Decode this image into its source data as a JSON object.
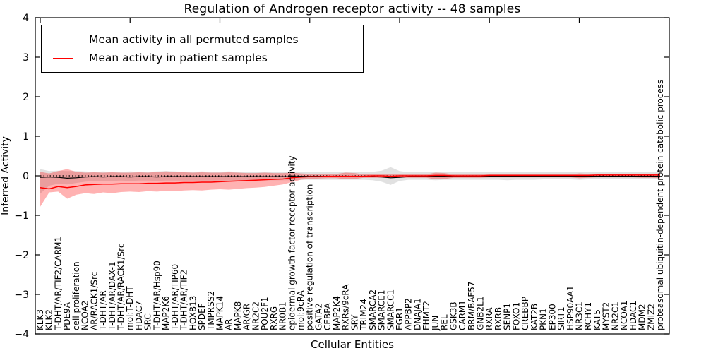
{
  "title": "Regulation of Androgen receptor activity -- 48 samples",
  "axes": {
    "ylabel": "Inferred Activity",
    "xlabel": "Cellular Entities"
  },
  "legend": [
    {
      "label": "Mean activity in all permuted samples",
      "color": "#000000"
    },
    {
      "label": "Mean activity in patient samples",
      "color": "#ff0000"
    }
  ],
  "chart_data": {
    "type": "line",
    "title": "Regulation of Androgen receptor activity -- 48 samples",
    "xlabel": "Cellular Entities",
    "ylabel": "Inferred Activity",
    "ylim": [
      -4,
      4
    ],
    "yticks": [
      4,
      3,
      2,
      1,
      0,
      -1,
      -2,
      -3,
      -4
    ],
    "ytick_labels": [
      "4",
      "3",
      "2",
      "1",
      "0",
      "−1",
      "−2",
      "−3",
      "−4"
    ],
    "grid": false,
    "legend_position": "upper left",
    "zero_line": {
      "y": 0,
      "style": "dotted",
      "color": "#000000"
    },
    "colors": {
      "permuted_line": "#000000",
      "patient_line": "#ff0000",
      "permuted_band": "rgba(90,90,90,0.18)",
      "patient_band": "rgba(255,0,0,0.30)"
    },
    "categories": [
      "KLK3",
      "KLK2",
      "T-DHT/AR/TIF2/CARM1",
      "PDE9A",
      "cell proliferation",
      "NCOA2",
      "AR/RACK1/Src",
      "T-DHT/AR",
      "T-DHT/AR/DAX-1",
      "T-DHT/AR/RACK1/Src",
      "mol:T-DHT",
      "HDAC7",
      "SRC",
      "T-DHT/AR/Hsp90",
      "MAP2K6",
      "T-DHT/AR/TIP60",
      "T-DHT/AR/TIF2",
      "HOXB13",
      "SPDEF",
      "TMPRSS2",
      "MAPK14",
      "AR",
      "MAPK8",
      "AR/GR",
      "NR2C2",
      "POU2F1",
      "RXRG",
      "NR0B1",
      "epidermal growth factor receptor activity",
      "mol:9cRA",
      "positive regulation of transcription",
      "GATA2",
      "CEBPA",
      "MAP2K4",
      "RXRs/9cRA",
      "SRY",
      "TRIM24",
      "SMARCA2",
      "SMARCE1",
      "SMARCC1",
      "EGR1",
      "APPBP2",
      "DNAJA1",
      "EHMT2",
      "JUN",
      "REL",
      "GSK3B",
      "CARM1",
      "BRM/BAF57",
      "GNB2L1",
      "RXRA",
      "RXRB",
      "SENP1",
      "FOXO1",
      "CREBBP",
      "KAT2B",
      "PKN1",
      "EP300",
      "SIRT1",
      "HSP90AA1",
      "NR3C1",
      "RCHY1",
      "KAT5",
      "MYST2",
      "NR2C1",
      "NCOA1",
      "HDAC1",
      "MDM2",
      "ZMIZ2",
      "proteasomal ubiquitin-dependent protein catabolic process"
    ],
    "series": [
      {
        "name": "Mean activity in all permuted samples",
        "values": [
          -0.04,
          -0.03,
          -0.04,
          -0.06,
          -0.05,
          -0.03,
          -0.02,
          -0.03,
          -0.02,
          -0.02,
          -0.03,
          -0.02,
          -0.02,
          -0.03,
          -0.02,
          -0.02,
          -0.02,
          -0.02,
          -0.02,
          -0.02,
          -0.02,
          -0.02,
          -0.02,
          -0.02,
          -0.02,
          -0.02,
          -0.02,
          -0.02,
          -0.02,
          -0.01,
          -0.01,
          -0.01,
          -0.01,
          -0.01,
          -0.01,
          -0.01,
          -0.01,
          -0.02,
          -0.03,
          -0.05,
          -0.04,
          -0.02,
          -0.01,
          -0.01,
          -0.01,
          -0.01,
          -0.01,
          -0.01,
          -0.01,
          -0.01,
          -0.01,
          -0.01,
          -0.01,
          -0.01,
          -0.01,
          -0.01,
          -0.01,
          -0.01,
          -0.01,
          -0.01,
          -0.01,
          -0.01,
          -0.01,
          -0.01,
          -0.01,
          -0.01,
          -0.01,
          -0.01,
          -0.01,
          -0.01
        ],
        "band_high": [
          0.17,
          0.12,
          0.13,
          0.12,
          0.12,
          0.11,
          0.1,
          0.11,
          0.1,
          0.1,
          0.11,
          0.1,
          0.1,
          0.11,
          0.12,
          0.11,
          0.1,
          0.1,
          0.11,
          0.1,
          0.1,
          0.11,
          0.1,
          0.1,
          0.1,
          0.1,
          0.1,
          0.1,
          0.1,
          0.09,
          0.09,
          0.09,
          0.09,
          0.09,
          0.09,
          0.09,
          0.09,
          0.1,
          0.13,
          0.22,
          0.12,
          0.09,
          0.09,
          0.09,
          0.1,
          0.09,
          0.09,
          0.09,
          0.09,
          0.09,
          0.09,
          0.09,
          0.1,
          0.09,
          0.09,
          0.09,
          0.09,
          0.09,
          0.09,
          0.09,
          0.1,
          0.09,
          0.09,
          0.09,
          0.09,
          0.09,
          0.09,
          0.09,
          0.09,
          0.09
        ],
        "band_low": [
          -0.45,
          -0.25,
          -0.2,
          -0.22,
          -0.18,
          -0.15,
          -0.13,
          -0.14,
          -0.13,
          -0.12,
          -0.13,
          -0.12,
          -0.12,
          -0.13,
          -0.12,
          -0.12,
          -0.12,
          -0.12,
          -0.12,
          -0.12,
          -0.12,
          -0.12,
          -0.12,
          -0.11,
          -0.11,
          -0.11,
          -0.11,
          -0.11,
          -0.11,
          -0.1,
          -0.1,
          -0.1,
          -0.1,
          -0.1,
          -0.1,
          -0.1,
          -0.1,
          -0.11,
          -0.15,
          -0.23,
          -0.13,
          -0.1,
          -0.1,
          -0.1,
          -0.11,
          -0.1,
          -0.1,
          -0.1,
          -0.1,
          -0.1,
          -0.1,
          -0.1,
          -0.11,
          -0.1,
          -0.1,
          -0.1,
          -0.09,
          -0.09,
          -0.09,
          -0.09,
          -0.1,
          -0.09,
          -0.09,
          -0.09,
          -0.09,
          -0.09,
          -0.09,
          -0.09,
          -0.09,
          -0.09
        ]
      },
      {
        "name": "Mean activity in patient samples",
        "values": [
          -0.3,
          -0.33,
          -0.27,
          -0.3,
          -0.27,
          -0.23,
          -0.22,
          -0.21,
          -0.21,
          -0.2,
          -0.2,
          -0.2,
          -0.19,
          -0.19,
          -0.18,
          -0.18,
          -0.17,
          -0.17,
          -0.16,
          -0.16,
          -0.15,
          -0.14,
          -0.13,
          -0.12,
          -0.11,
          -0.1,
          -0.09,
          -0.08,
          -0.05,
          -0.03,
          -0.02,
          -0.02,
          -0.01,
          -0.01,
          -0.01,
          -0.01,
          -0.01,
          0.0,
          0.0,
          -0.01,
          0.0,
          0.0,
          0.0,
          0.0,
          0.01,
          0.01,
          0.0,
          0.0,
          0.0,
          0.0,
          0.01,
          0.01,
          0.01,
          0.01,
          0.01,
          0.01,
          0.01,
          0.01,
          0.01,
          0.01,
          0.01,
          0.01,
          0.02,
          0.02,
          0.02,
          0.02,
          0.02,
          0.02,
          0.02,
          0.02
        ],
        "band_high": [
          0.1,
          0.06,
          0.12,
          0.17,
          0.1,
          0.08,
          0.09,
          0.08,
          0.09,
          0.08,
          0.08,
          0.09,
          0.08,
          0.1,
          0.11,
          0.1,
          0.09,
          0.08,
          0.09,
          0.08,
          0.08,
          0.09,
          0.08,
          0.07,
          0.07,
          0.08,
          0.07,
          0.07,
          0.08,
          0.06,
          0.05,
          0.05,
          0.04,
          0.05,
          0.08,
          0.07,
          0.04,
          0.04,
          0.04,
          0.04,
          0.04,
          0.04,
          0.04,
          0.04,
          0.08,
          0.07,
          0.04,
          0.04,
          0.04,
          0.04,
          0.04,
          0.04,
          0.04,
          0.04,
          0.04,
          0.04,
          0.04,
          0.04,
          0.04,
          0.04,
          0.06,
          0.05,
          0.04,
          0.04,
          0.04,
          0.04,
          0.04,
          0.05,
          0.05,
          0.06
        ],
        "band_low": [
          -0.78,
          -0.42,
          -0.4,
          -0.58,
          -0.48,
          -0.44,
          -0.46,
          -0.42,
          -0.44,
          -0.41,
          -0.4,
          -0.41,
          -0.39,
          -0.4,
          -0.38,
          -0.39,
          -0.37,
          -0.36,
          -0.37,
          -0.35,
          -0.34,
          -0.35,
          -0.33,
          -0.31,
          -0.3,
          -0.28,
          -0.25,
          -0.22,
          -0.16,
          -0.1,
          -0.08,
          -0.07,
          -0.06,
          -0.06,
          -0.09,
          -0.08,
          -0.05,
          -0.05,
          -0.05,
          -0.06,
          -0.05,
          -0.05,
          -0.05,
          -0.05,
          -0.09,
          -0.08,
          -0.05,
          -0.05,
          -0.05,
          -0.05,
          -0.04,
          -0.04,
          -0.04,
          -0.04,
          -0.04,
          -0.04,
          -0.04,
          -0.04,
          -0.04,
          -0.04,
          -0.06,
          -0.05,
          -0.04,
          -0.04,
          -0.04,
          -0.04,
          -0.04,
          -0.05,
          -0.05,
          -0.06
        ]
      }
    ]
  }
}
